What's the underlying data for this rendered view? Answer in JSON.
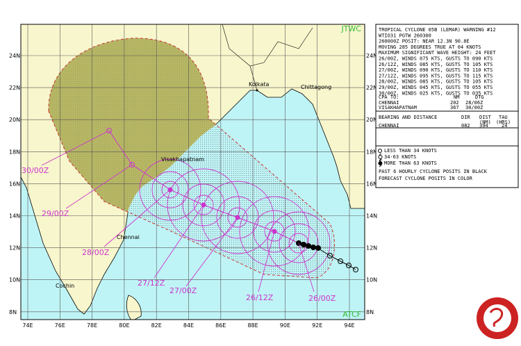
{
  "map": {
    "agency_top": "JTWC",
    "agency_bottom": "ATCF",
    "latitude_labels": [
      "24N",
      "22N",
      "20N",
      "18N",
      "16N",
      "14N",
      "12N",
      "10N",
      "8N"
    ],
    "longitude_labels": [
      "74E",
      "76E",
      "78E",
      "80E",
      "82E",
      "84E",
      "86E",
      "88E",
      "90E",
      "92E",
      "94E"
    ],
    "places": [
      "Kolkata",
      "Chittagong",
      "Visakhapatnam",
      "Chennai",
      "Cochin"
    ],
    "forecast_labels": [
      "26/00Z",
      "26/12Z",
      "27/00Z",
      "27/12Z",
      "28/00Z",
      "29/00Z",
      "30/00Z"
    ]
  },
  "warning": {
    "lines": [
      "TROPICAL CYCLONE 05B (LEMAR) WARNING #12",
      "WTIO31 PGTW 260300",
      "260000Z POSIT: NEAR 12.3N 90.8E",
      "MOVING 285 DEGREES TRUE AT 04 KNOTS",
      "MAXIMUM SIGNIFICANT WAVE HEIGHT: 24 FEET",
      "26/00Z, WINDS 075 KTS, GUSTS TO 090 KTS",
      "26/12Z, WINDS 085 KTS, GUSTS TO 105 KTS",
      "27/00Z, WINDS 090 KTS, GUSTS TO 110 KTS",
      "27/12Z, WINDS 095 KTS, GUSTS TO 115 KTS",
      "28/00Z, WINDS 085 KTS, GUSTS TO 105 KTS",
      "29/00Z, WINDS 045 KTS, GUSTS TO 055 KTS",
      "30/00Z, WINDS 025 KTS, GUSTS TO 035 KTS"
    ]
  },
  "cpa": {
    "header": [
      "CPA TO:",
      "NM",
      "DTG"
    ],
    "rows": [
      [
        "CHENNAI",
        "202",
        "28/06Z"
      ],
      [
        "VISAKHAPATNAM",
        "367",
        "30/00Z"
      ]
    ]
  },
  "bearing": {
    "header": [
      "BEARING AND DISTANCE",
      "DIR",
      "DIST",
      "TAU"
    ],
    "units": [
      "(NM)",
      "(HRS)"
    ],
    "rows": [
      [
        "CHENNAI",
        "082",
        "394",
        "24"
      ]
    ]
  },
  "legend": [
    "LESS THAN 34 KNOTS",
    "34-63 KNOTS",
    "MORE THAN 63 KNOTS",
    "PAST 6 HOURLY CYCLONE POSITS IN BLACK",
    "FORECAST CYCLONE POSITS IN COLOR"
  ]
}
